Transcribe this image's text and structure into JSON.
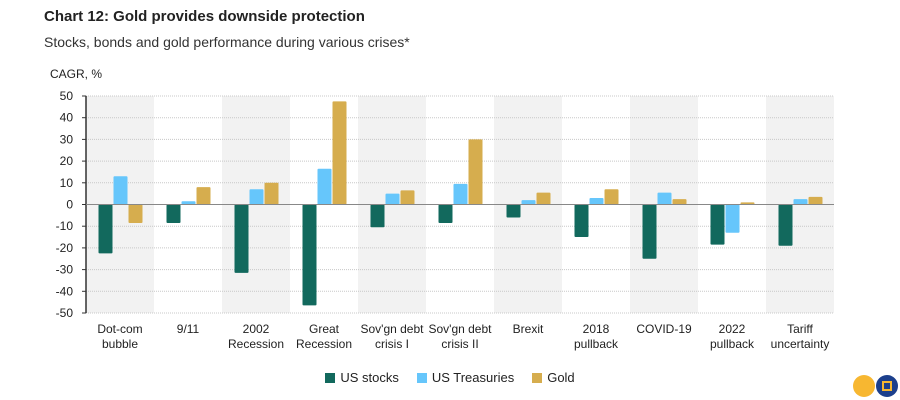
{
  "chart_data": {
    "type": "bar",
    "title": "Chart 12: Gold provides downside protection",
    "subtitle": "Stocks, bonds and gold performance during various crises*",
    "ylabel": "CAGR, %",
    "ylim": [
      -50,
      50
    ],
    "yticks": [
      50,
      40,
      30,
      20,
      10,
      0,
      -10,
      -20,
      -30,
      -40,
      -50
    ],
    "grid": true,
    "legend_position": "bottom",
    "categories": [
      [
        "Dot-com",
        "bubble"
      ],
      [
        "9/11"
      ],
      [
        "2002",
        "Recession"
      ],
      [
        "Great",
        "Recession"
      ],
      [
        "Sov'gn debt",
        "crisis I"
      ],
      [
        "Sov'gn debt",
        "crisis II"
      ],
      [
        "Brexit"
      ],
      [
        "2018",
        "pullback"
      ],
      [
        "COVID-19"
      ],
      [
        "2022",
        "pullback"
      ],
      [
        "Tariff",
        "uncertainty"
      ]
    ],
    "series": [
      {
        "name": "US stocks",
        "color": "#12695d",
        "values": [
          -22.5,
          -8.5,
          -31.5,
          -46.5,
          -10.5,
          -8.5,
          -6,
          -15,
          -25,
          -18.5,
          -19
        ]
      },
      {
        "name": "US Treasuries",
        "color": "#66c6fb",
        "values": [
          13,
          1.5,
          7,
          16.5,
          5,
          9.5,
          2,
          3,
          5.5,
          -13,
          2.5
        ]
      },
      {
        "name": "Gold",
        "color": "#d6ad4e",
        "values": [
          -8.5,
          8,
          10,
          47.5,
          6.5,
          30,
          5.5,
          7,
          2.5,
          1,
          3.5
        ]
      }
    ]
  }
}
